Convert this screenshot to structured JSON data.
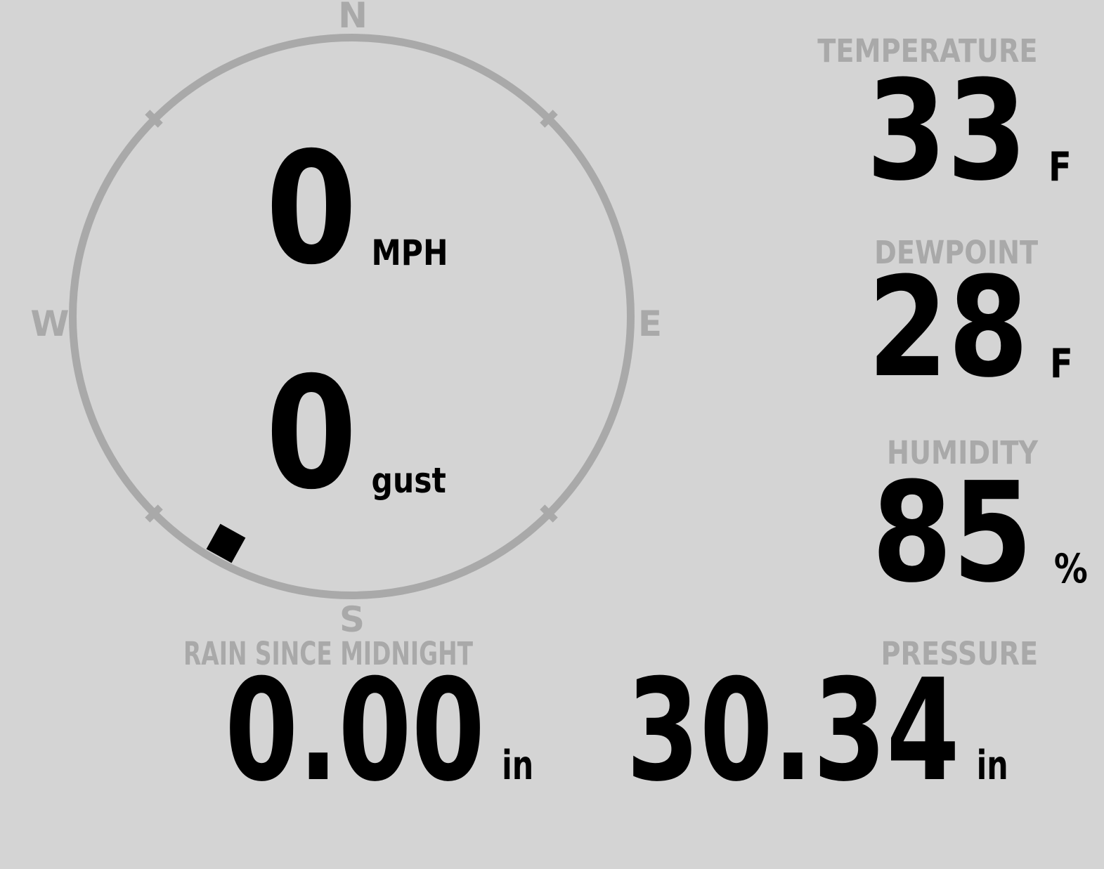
{
  "colors": {
    "background": "#d4d4d4",
    "muted": "#a9a9a9",
    "ink": "#000000"
  },
  "compass": {
    "north_label": "N",
    "east_label": "E",
    "south_label": "S",
    "west_label": "W",
    "speed": {
      "value": "0",
      "unit": "MPH"
    },
    "gust": {
      "value": "0",
      "unit": "gust"
    },
    "wind_direction_bearing_deg": 209
  },
  "metrics": {
    "temperature": {
      "label": "TEMPERATURE",
      "value": "33",
      "unit": "F"
    },
    "dewpoint": {
      "label": "DEWPOINT",
      "value": "28",
      "unit": "F"
    },
    "humidity": {
      "label": "HUMIDITY",
      "value": "85",
      "unit": "%"
    },
    "rain_since_midnight": {
      "label": "RAIN SINCE MIDNIGHT",
      "value": "0.00",
      "unit": "in"
    },
    "pressure": {
      "label": "PRESSURE",
      "value": "30.34",
      "unit": "in"
    }
  }
}
